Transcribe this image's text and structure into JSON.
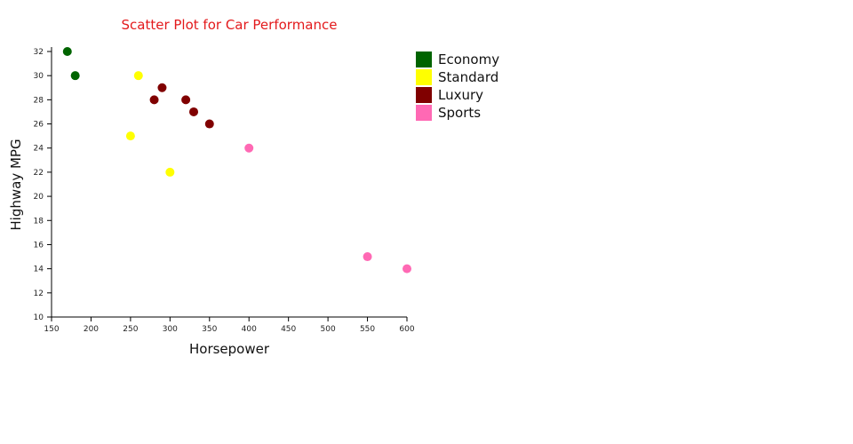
{
  "chart_data": {
    "type": "scatter",
    "title": "Scatter Plot for Car Performance",
    "title_color": "#e31a1c",
    "xlabel": "Horsepower",
    "ylabel": "Highway MPG",
    "xlim": [
      150,
      600
    ],
    "ylim": [
      10,
      32
    ],
    "x_ticks": [
      150,
      200,
      250,
      300,
      350,
      400,
      450,
      500,
      550,
      600
    ],
    "y_ticks": [
      10,
      12,
      14,
      16,
      18,
      20,
      22,
      24,
      26,
      28,
      30,
      32
    ],
    "grid": false,
    "legend_position": "right",
    "series": [
      {
        "name": "Economy",
        "color": "#006400",
        "points": [
          {
            "x": 170,
            "y": 32
          },
          {
            "x": 180,
            "y": 30
          }
        ]
      },
      {
        "name": "Standard",
        "color": "#ffff00",
        "points": [
          {
            "x": 260,
            "y": 30
          },
          {
            "x": 250,
            "y": 25
          },
          {
            "x": 300,
            "y": 22
          }
        ]
      },
      {
        "name": "Luxury",
        "color": "#800000",
        "points": [
          {
            "x": 280,
            "y": 28
          },
          {
            "x": 290,
            "y": 29
          },
          {
            "x": 320,
            "y": 28
          },
          {
            "x": 330,
            "y": 27
          },
          {
            "x": 350,
            "y": 26
          }
        ]
      },
      {
        "name": "Sports",
        "color": "#ff69b4",
        "points": [
          {
            "x": 400,
            "y": 24
          },
          {
            "x": 550,
            "y": 15
          },
          {
            "x": 600,
            "y": 14
          }
        ]
      }
    ]
  }
}
